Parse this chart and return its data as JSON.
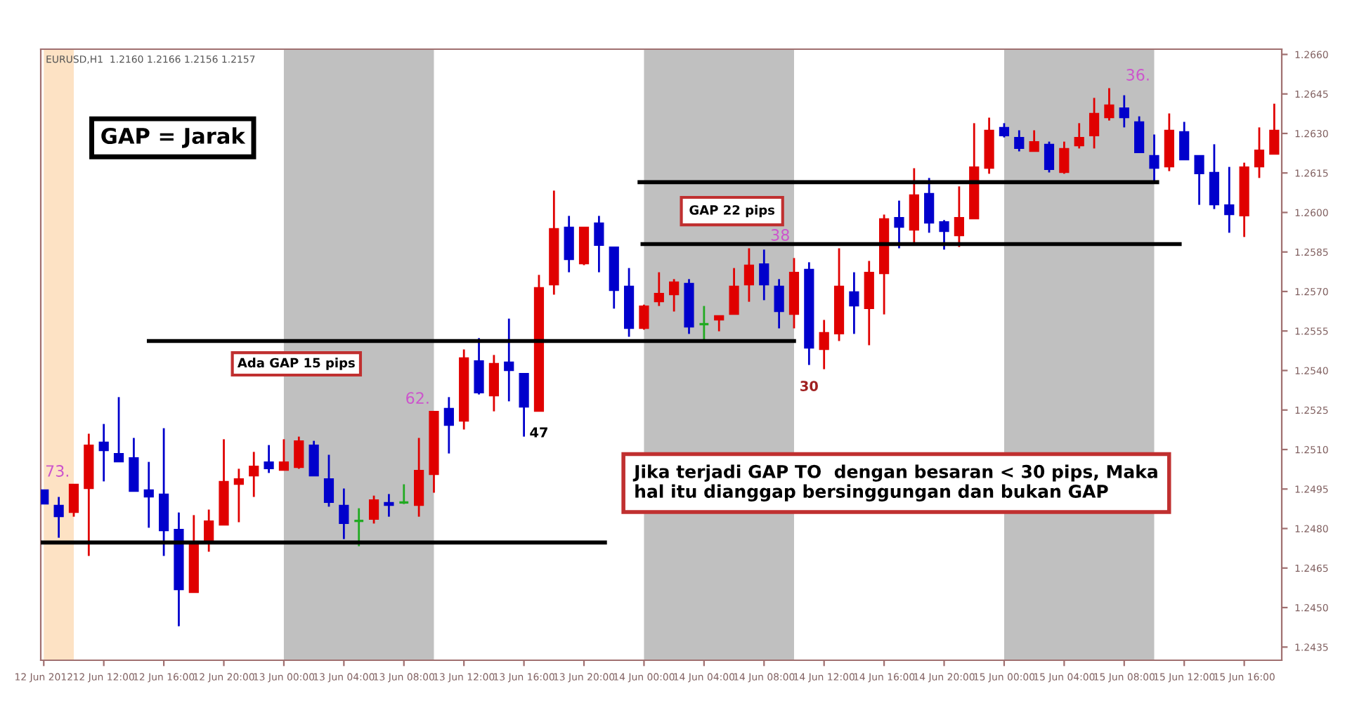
{
  "chart_data": {
    "type": "candlestick",
    "x": [
      "2012-06-12T08:00",
      "2012-06-12T09:00",
      "2012-06-12T10:00",
      "2012-06-12T11:00",
      "2012-06-12T12:00",
      "2012-06-12T13:00",
      "2012-06-12T14:00",
      "2012-06-12T15:00",
      "2012-06-12T16:00",
      "2012-06-12T17:00",
      "2012-06-12T18:00",
      "2012-06-12T19:00",
      "2012-06-12T20:00",
      "2012-06-12T21:00",
      "2012-06-12T22:00",
      "2012-06-12T23:00",
      "2012-06-13T00:00",
      "2012-06-13T01:00",
      "2012-06-13T02:00",
      "2012-06-13T03:00",
      "2012-06-13T04:00",
      "2012-06-13T05:00",
      "2012-06-13T06:00",
      "2012-06-13T07:00",
      "2012-06-13T08:00",
      "2012-06-13T09:00",
      "2012-06-13T10:00",
      "2012-06-13T11:00",
      "2012-06-13T12:00",
      "2012-06-13T13:00",
      "2012-06-13T14:00",
      "2012-06-13T15:00",
      "2012-06-13T16:00",
      "2012-06-13T17:00",
      "2012-06-13T18:00",
      "2012-06-13T19:00",
      "2012-06-13T20:00",
      "2012-06-13T21:00",
      "2012-06-13T22:00",
      "2012-06-13T23:00",
      "2012-06-14T00:00",
      "2012-06-14T01:00",
      "2012-06-14T02:00",
      "2012-06-14T03:00",
      "2012-06-14T04:00",
      "2012-06-14T05:00",
      "2012-06-14T06:00",
      "2012-06-14T07:00",
      "2012-06-14T08:00",
      "2012-06-14T09:00",
      "2012-06-14T10:00",
      "2012-06-14T11:00",
      "2012-06-14T12:00",
      "2012-06-14T13:00",
      "2012-06-14T14:00",
      "2012-06-14T15:00",
      "2012-06-14T16:00",
      "2012-06-14T17:00",
      "2012-06-14T18:00",
      "2012-06-14T19:00",
      "2012-06-14T20:00",
      "2012-06-14T21:00",
      "2012-06-14T22:00",
      "2012-06-14T23:00",
      "2012-06-15T00:00",
      "2012-06-15T01:00",
      "2012-06-15T02:00",
      "2012-06-15T03:00",
      "2012-06-15T04:00",
      "2012-06-15T05:00",
      "2012-06-15T06:00",
      "2012-06-15T07:00",
      "2012-06-15T08:00",
      "2012-06-15T09:00",
      "2012-06-15T10:00",
      "2012-06-15T11:00",
      "2012-06-15T12:00",
      "2012-06-15T13:00",
      "2012-06-15T14:00",
      "2012-06-15T15:00",
      "2012-06-15T16:00",
      "2012-06-15T17:00",
      "2012-06-15T18:00"
    ],
    "ohlc": [
      [
        1.24947,
        1.24947,
        1.24893,
        1.24893
      ],
      [
        1.24888,
        1.2492,
        1.24765,
        1.24845
      ],
      [
        1.24861,
        1.24968,
        1.24845,
        1.24968
      ],
      [
        1.24952,
        1.2516,
        1.24696,
        1.25117
      ],
      [
        1.25128,
        1.25197,
        1.24979,
        1.25096
      ],
      [
        1.25085,
        1.25299,
        1.25053,
        1.25053
      ],
      [
        1.25069,
        1.25144,
        1.24941,
        1.24941
      ],
      [
        1.24947,
        1.25053,
        1.24803,
        1.2492
      ],
      [
        1.24931,
        1.25181,
        1.24696,
        1.24792
      ],
      [
        1.24797,
        1.24861,
        1.24429,
        1.24568
      ],
      [
        1.24557,
        1.24851,
        1.24557,
        1.24739
      ],
      [
        1.24744,
        1.24872,
        1.24712,
        1.24829
      ],
      [
        1.24813,
        1.25139,
        1.24813,
        1.24979
      ],
      [
        1.24968,
        1.25027,
        1.24824,
        1.24989
      ],
      [
        1.25,
        1.25091,
        1.2492,
        1.25037
      ],
      [
        1.25053,
        1.25117,
        1.25011,
        1.25027
      ],
      [
        1.25021,
        1.25139,
        1.25021,
        1.25053
      ],
      [
        1.25032,
        1.25149,
        1.25027,
        1.25133
      ],
      [
        1.25117,
        1.25133,
        1.25,
        1.25
      ],
      [
        1.24989,
        1.2508,
        1.24883,
        1.24899
      ],
      [
        1.24888,
        1.24952,
        1.2476,
        1.24819
      ],
      [
        1.24829,
        1.24877,
        1.24733,
        1.24829
      ],
      [
        1.24835,
        1.24925,
        1.24819,
        1.24909
      ],
      [
        1.24899,
        1.24931,
        1.24845,
        1.24888
      ],
      [
        1.24899,
        1.24968,
        1.24893,
        1.24899
      ],
      [
        1.24888,
        1.25144,
        1.24845,
        1.25021
      ],
      [
        1.25005,
        1.25245,
        1.24936,
        1.25245
      ],
      [
        1.25256,
        1.25299,
        1.25085,
        1.25192
      ],
      [
        1.25208,
        1.2548,
        1.25176,
        1.25448
      ],
      [
        1.25437,
        1.25523,
        1.25309,
        1.25315
      ],
      [
        1.25304,
        1.25459,
        1.25245,
        1.25427
      ],
      [
        1.25432,
        1.25597,
        1.25283,
        1.254
      ],
      [
        1.25389,
        1.25389,
        1.25149,
        1.25261
      ],
      [
        1.25245,
        1.25763,
        1.25245,
        1.25715
      ],
      [
        1.25725,
        1.26083,
        1.25688,
        1.25939
      ],
      [
        1.25944,
        1.25987,
        1.25773,
        1.25821
      ],
      [
        1.25805,
        1.25944,
        1.258,
        1.25944
      ],
      [
        1.2596,
        1.25987,
        1.25773,
        1.25875
      ],
      [
        1.25869,
        1.25869,
        1.25635,
        1.25704
      ],
      [
        1.2572,
        1.25789,
        1.25528,
        1.2556
      ],
      [
        1.2556,
        1.2565,
        1.25555,
        1.25645
      ],
      [
        1.25661,
        1.25773,
        1.25645,
        1.25693
      ],
      [
        1.25688,
        1.25747,
        1.25624,
        1.25736
      ],
      [
        1.25731,
        1.25747,
        1.25539,
        1.25565
      ],
      [
        1.25576,
        1.25645,
        1.25517,
        1.25576
      ],
      [
        1.25592,
        1.25608,
        1.25549,
        1.25608
      ],
      [
        1.25613,
        1.25789,
        1.25613,
        1.2572
      ],
      [
        1.25725,
        1.25864,
        1.25661,
        1.258
      ],
      [
        1.25805,
        1.25859,
        1.25667,
        1.25725
      ],
      [
        1.2572,
        1.25747,
        1.2556,
        1.25624
      ],
      [
        1.25613,
        1.25827,
        1.2556,
        1.25773
      ],
      [
        1.25784,
        1.25811,
        1.25421,
        1.25485
      ],
      [
        1.2548,
        1.25592,
        1.25405,
        1.25544
      ],
      [
        1.25539,
        1.25864,
        1.25512,
        1.2572
      ],
      [
        1.25699,
        1.25773,
        1.25539,
        1.25645
      ],
      [
        1.25635,
        1.25816,
        1.25496,
        1.25773
      ],
      [
        1.25768,
        1.25992,
        1.25613,
        1.25976
      ],
      [
        1.25981,
        1.26045,
        1.25864,
        1.25944
      ],
      [
        1.25933,
        1.26168,
        1.25885,
        1.26067
      ],
      [
        1.26072,
        1.26131,
        1.25923,
        1.2596
      ],
      [
        1.25965,
        1.25971,
        1.25859,
        1.25928
      ],
      [
        1.25912,
        1.26099,
        1.25869,
        1.25981
      ],
      [
        1.25976,
        1.26339,
        1.25976,
        1.26173
      ],
      [
        1.26168,
        1.2636,
        1.26147,
        1.26312
      ],
      [
        1.26323,
        1.26339,
        1.26285,
        1.26291
      ],
      [
        1.26285,
        1.26312,
        1.26232,
        1.26243
      ],
      [
        1.26232,
        1.26312,
        1.26232,
        1.26269
      ],
      [
        1.26259,
        1.26269,
        1.26152,
        1.26163
      ],
      [
        1.26152,
        1.26269,
        1.26147,
        1.26243
      ],
      [
        1.26253,
        1.26339,
        1.26243,
        1.26285
      ],
      [
        1.26291,
        1.26435,
        1.26243,
        1.26376
      ],
      [
        1.2636,
        1.26472,
        1.26349,
        1.26408
      ],
      [
        1.26397,
        1.26445,
        1.26323,
        1.2636
      ],
      [
        1.26344,
        1.26365,
        1.26227,
        1.26227
      ],
      [
        1.26216,
        1.26296,
        1.2612,
        1.26168
      ],
      [
        1.26173,
        1.26376,
        1.26157,
        1.26312
      ],
      [
        1.26307,
        1.26344,
        1.262,
        1.262
      ],
      [
        1.26216,
        1.26216,
        1.26029,
        1.26147
      ],
      [
        1.26152,
        1.26259,
        1.26013,
        1.26029
      ],
      [
        1.26029,
        1.26173,
        1.25923,
        1.25992
      ],
      [
        1.25987,
        1.26189,
        1.25907,
        1.26173
      ],
      [
        1.26173,
        1.26323,
        1.26131,
        1.26237
      ],
      [
        1.26221,
        1.26413,
        1.26221,
        1.26312
      ]
    ],
    "colors": [
      "#0000cc",
      "#0000cc",
      "#e00000",
      "#e00000",
      "#0000cc",
      "#0000cc",
      "#0000cc",
      "#0000cc",
      "#0000cc",
      "#0000cc",
      "#e00000",
      "#e00000",
      "#e00000",
      "#e00000",
      "#e00000",
      "#0000cc",
      "#e00000",
      "#e00000",
      "#0000cc",
      "#0000cc",
      "#0000cc",
      "#22aa22",
      "#e00000",
      "#0000cc",
      "#22aa22",
      "#e00000",
      "#e00000",
      "#0000cc",
      "#e00000",
      "#0000cc",
      "#e00000",
      "#0000cc",
      "#0000cc",
      "#e00000",
      "#e00000",
      "#0000cc",
      "#e00000",
      "#0000cc",
      "#0000cc",
      "#0000cc",
      "#e00000",
      "#e00000",
      "#e00000",
      "#0000cc",
      "#22aa22",
      "#e00000",
      "#e00000",
      "#e00000",
      "#0000cc",
      "#0000cc",
      "#e00000",
      "#0000cc",
      "#e00000",
      "#e00000",
      "#0000cc",
      "#e00000",
      "#e00000",
      "#0000cc",
      "#e00000",
      "#0000cc",
      "#0000cc",
      "#e00000",
      "#e00000",
      "#e00000",
      "#0000cc",
      "#0000cc",
      "#e00000",
      "#0000cc",
      "#e00000",
      "#e00000",
      "#e00000",
      "#e00000",
      "#0000cc",
      "#0000cc",
      "#0000cc",
      "#e00000",
      "#0000cc",
      "#0000cc",
      "#0000cc",
      "#0000cc",
      "#e00000",
      "#e00000",
      "#e00000"
    ],
    "series": [
      {
        "type": "line",
        "color": "#000000",
        "x": [
          "2012-06-12T07:48",
          "2012-06-13T21:24"
        ],
        "values": [
          1.24747,
          1.24747
        ]
      },
      {
        "type": "line",
        "color": "#000000",
        "x": [
          "2012-06-12T15:00",
          "2012-06-14T10:00"
        ],
        "values": [
          1.25512,
          1.25512
        ]
      },
      {
        "type": "line",
        "color": "#000000",
        "x": [
          "2012-06-13T23:54",
          "2012-06-15T11:42"
        ],
        "values": [
          1.2588,
          1.2588
        ]
      },
      {
        "type": "line",
        "color": "#000000",
        "x": [
          "2012-06-13T23:42",
          "2012-06-15T10:12"
        ],
        "values": [
          1.26115,
          1.26115
        ]
      }
    ],
    "bands": [
      {
        "axis": "x",
        "from": "2012-06-12T08:00",
        "to": "2012-06-12T10:00",
        "label": "73.",
        "color": "#fde2c4"
      },
      {
        "axis": "x",
        "from": "2012-06-13T00:00",
        "to": "2012-06-13T10:00",
        "label": "62.",
        "color": "#c0c0c0"
      },
      {
        "axis": "x",
        "from": "2012-06-14T00:00",
        "to": "2012-06-14T10:00",
        "label": "38",
        "color": "#c0c0c0"
      },
      {
        "axis": "x",
        "from": "2012-06-15T00:00",
        "to": "2012-06-15T10:00",
        "label": "36.",
        "color": "#c0c0c0"
      }
    ],
    "annotations": [
      "EURUSD,H1  1.2160 1.2166 1.2156 1.2157",
      "GAP = Jarak",
      "Ada GAP 15 pips",
      "GAP 22 pips",
      "Jika terjadi GAP TO  dengan besaran < 30 pips, Maka\nhal itu dianggap bersinggungan dan bukan GAP",
      {
        "text": "47",
        "x": "2012-06-13T17:00",
        "y": 1.25245
      },
      {
        "text": "30",
        "x": "2012-06-14T11:00",
        "y": 1.25421
      }
    ],
    "xlim": [
      "2012-06-12T07:48",
      "2012-06-15T18:30"
    ],
    "xticks": [
      {
        "value": "2012-06-12T08:00",
        "label": "12 Jun 2012"
      },
      {
        "value": "2012-06-12T12:00",
        "label": "12 Jun 12:00"
      },
      {
        "value": "2012-06-12T16:00",
        "label": "12 Jun 16:00"
      },
      {
        "value": "2012-06-12T20:00",
        "label": "12 Jun 20:00"
      },
      {
        "value": "2012-06-13T00:00",
        "label": "13 Jun 00:00"
      },
      {
        "value": "2012-06-13T04:00",
        "label": "13 Jun 04:00"
      },
      {
        "value": "2012-06-13T08:00",
        "label": "13 Jun 08:00"
      },
      {
        "value": "2012-06-13T12:00",
        "label": "13 Jun 12:00"
      },
      {
        "value": "2012-06-13T16:00",
        "label": "13 Jun 16:00"
      },
      {
        "value": "2012-06-13T20:00",
        "label": "13 Jun 20:00"
      },
      {
        "value": "2012-06-14T00:00",
        "label": "14 Jun 00:00"
      },
      {
        "value": "2012-06-14T04:00",
        "label": "14 Jun 04:00"
      },
      {
        "value": "2012-06-14T08:00",
        "label": "14 Jun 08:00"
      },
      {
        "value": "2012-06-14T12:00",
        "label": "14 Jun 12:00"
      },
      {
        "value": "2012-06-14T16:00",
        "label": "14 Jun 16:00"
      },
      {
        "value": "2012-06-14T20:00",
        "label": "14 Jun 20:00"
      },
      {
        "value": "2012-06-15T00:00",
        "label": "15 Jun 00:00"
      },
      {
        "value": "2012-06-15T04:00",
        "label": "15 Jun 04:00"
      },
      {
        "value": "2012-06-15T08:00",
        "label": "15 Jun 08:00"
      },
      {
        "value": "2012-06-15T12:00",
        "label": "15 Jun 12:00"
      },
      {
        "value": "2012-06-15T16:00",
        "label": "15 Jun 16:00"
      }
    ],
    "ylim": [
      1.243,
      1.2662
    ],
    "yticks": [
      1.2435,
      {
        "value": 1.245,
        "label": "1.2450"
      },
      1.2465,
      {
        "value": 1.248,
        "label": "1.2480"
      },
      1.2495,
      {
        "value": 1.251,
        "label": "1.2510"
      },
      1.2525,
      {
        "value": 1.254,
        "label": "1.2540"
      },
      1.2555,
      {
        "value": 1.257,
        "label": "1.2570"
      },
      1.2585,
      {
        "value": 1.26,
        "label": "1.2600"
      },
      1.2615,
      {
        "value": 1.263,
        "label": "1.2630"
      },
      1.2645,
      {
        "value": 1.266,
        "label": "1.2660"
      }
    ]
  }
}
